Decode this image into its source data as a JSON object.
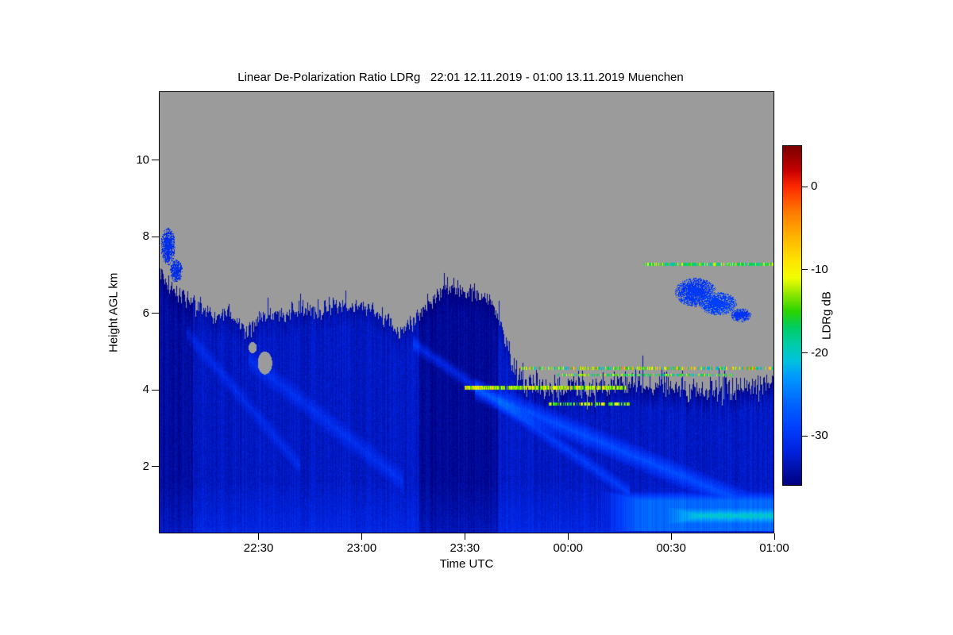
{
  "page": {
    "background": "#ffffff"
  },
  "chart_data": {
    "type": "heatmap",
    "title": "Linear De-Polarization Ratio LDRg   22:01 12.11.2019 - 01:00 13.11.2019 Muenchen",
    "xlabel": "Time UTC",
    "ylabel": "Height AGL km",
    "xlim": [
      22.0167,
      25.0
    ],
    "ylim": [
      0.25,
      11.8
    ],
    "x_ticks": [
      {
        "t": 22.5,
        "label": "22:30"
      },
      {
        "t": 23.0,
        "label": "23:00"
      },
      {
        "t": 23.5,
        "label": "23:30"
      },
      {
        "t": 24.0,
        "label": "00:00"
      },
      {
        "t": 24.5,
        "label": "00:30"
      },
      {
        "t": 25.0,
        "label": "01:00"
      }
    ],
    "y_ticks": [
      {
        "h": 2,
        "label": "2"
      },
      {
        "h": 4,
        "label": "4"
      },
      {
        "h": 6,
        "label": "6"
      },
      {
        "h": 8,
        "label": "8"
      },
      {
        "h": 10,
        "label": "10"
      }
    ],
    "no_signal_color": "#9b9b9b",
    "colorbar": {
      "label": "LDRg dB",
      "vmin": -36,
      "vmax": 5,
      "ticks": [
        {
          "v": 0,
          "label": "0"
        },
        {
          "v": -10,
          "label": "-10"
        },
        {
          "v": -20,
          "label": "-20"
        },
        {
          "v": -30,
          "label": "-30"
        }
      ],
      "stops": [
        [
          5,
          "#7a0000"
        ],
        [
          2,
          "#c80000"
        ],
        [
          0,
          "#ff2a00"
        ],
        [
          -3,
          "#ff7a00"
        ],
        [
          -6,
          "#ffb400"
        ],
        [
          -9,
          "#ffe600"
        ],
        [
          -11,
          "#f2ff00"
        ],
        [
          -13,
          "#8ce600"
        ],
        [
          -15,
          "#2bd400"
        ],
        [
          -17,
          "#00cc66"
        ],
        [
          -19,
          "#00ccaa"
        ],
        [
          -21,
          "#00c3e0"
        ],
        [
          -23,
          "#0099ff"
        ],
        [
          -26,
          "#0066ff"
        ],
        [
          -29,
          "#0040ff"
        ],
        [
          -32,
          "#0022dd"
        ],
        [
          -34,
          "#0011aa"
        ],
        [
          -36,
          "#000080]"
        ]
      ]
    },
    "field": {
      "seed": 11,
      "base_value_db": -33,
      "cloud_top_profile_km": [
        [
          22.02,
          7.1
        ],
        [
          22.05,
          6.8
        ],
        [
          22.12,
          6.4
        ],
        [
          22.21,
          6.1
        ],
        [
          22.29,
          5.9
        ],
        [
          22.37,
          6.0
        ],
        [
          22.44,
          5.5
        ],
        [
          22.52,
          5.9
        ],
        [
          22.6,
          6.0
        ],
        [
          22.71,
          6.1
        ],
        [
          22.79,
          6.0
        ],
        [
          22.87,
          6.2
        ],
        [
          22.98,
          6.2
        ],
        [
          23.06,
          6.1
        ],
        [
          23.13,
          5.8
        ],
        [
          23.19,
          5.5
        ],
        [
          23.25,
          5.8
        ],
        [
          23.32,
          6.3
        ],
        [
          23.4,
          6.6
        ],
        [
          23.48,
          6.6
        ],
        [
          23.55,
          6.5
        ],
        [
          23.63,
          6.3
        ],
        [
          23.7,
          5.4
        ],
        [
          23.74,
          4.4
        ],
        [
          23.8,
          4.1
        ],
        [
          23.95,
          4.0
        ],
        [
          24.1,
          4.0
        ],
        [
          24.25,
          4.15
        ],
        [
          24.4,
          4.1
        ],
        [
          24.55,
          4.0
        ],
        [
          24.7,
          4.0
        ],
        [
          24.85,
          4.1
        ],
        [
          25.0,
          4.2
        ]
      ],
      "top_jitter_km": [
        [
          22.02,
          0.3
        ],
        [
          23.68,
          0.3
        ],
        [
          23.78,
          0.5
        ],
        [
          25.0,
          0.5
        ]
      ],
      "dense_dark_regions": [
        {
          "t0": 23.28,
          "t1": 23.66,
          "delta_db": -2
        },
        {
          "t0": 22.02,
          "t1": 22.18,
          "delta_db": -1.5
        }
      ],
      "fall_streak_bands": [
        {
          "from": [
            23.55,
            4.0
          ],
          "to": [
            24.95,
            0.85
          ],
          "width_km": 0.35,
          "delta_db": 5
        },
        {
          "from": [
            23.25,
            5.2
          ],
          "to": [
            24.3,
            1.3
          ],
          "width_km": 0.25,
          "delta_db": 3.5
        },
        {
          "from": [
            22.45,
            4.8
          ],
          "to": [
            23.2,
            1.6
          ],
          "width_km": 0.35,
          "delta_db": 2.5
        },
        {
          "from": [
            22.15,
            5.5
          ],
          "to": [
            22.7,
            2.0
          ],
          "width_km": 0.3,
          "delta_db": 2
        }
      ],
      "low_level_bright_regions": [
        {
          "t0": 24.15,
          "t1": 25.0,
          "h0": 0.3,
          "h1": 1.35,
          "value_db": -26
        },
        {
          "t0": 24.45,
          "t1": 25.0,
          "h0": 0.45,
          "h1": 0.95,
          "value_db": -20
        }
      ],
      "detached_patches": [
        {
          "t": 24.62,
          "h": 6.55,
          "rt": 0.1,
          "rh": 0.38,
          "value_db": -30
        },
        {
          "t": 24.73,
          "h": 6.25,
          "rt": 0.09,
          "rh": 0.3,
          "value_db": -29
        },
        {
          "t": 24.84,
          "h": 5.95,
          "rt": 0.05,
          "rh": 0.18,
          "value_db": -30
        },
        {
          "t": 22.06,
          "h": 7.75,
          "rt": 0.035,
          "rh": 0.5,
          "value_db": -31
        },
        {
          "t": 22.1,
          "h": 7.1,
          "rt": 0.03,
          "rh": 0.3,
          "value_db": -31
        }
      ],
      "gray_holes": [
        {
          "t": 22.53,
          "h": 4.7,
          "rt": 0.035,
          "rh": 0.3
        },
        {
          "t": 22.47,
          "h": 5.1,
          "rt": 0.02,
          "rh": 0.15
        }
      ],
      "horizontal_streaks": [
        {
          "h": 7.27,
          "t0": 24.37,
          "t1": 25.0,
          "thickness_km": 0.08,
          "v0": -20,
          "v1": -9,
          "density": 0.85
        },
        {
          "h": 4.55,
          "t0": 23.77,
          "t1": 25.0,
          "thickness_km": 0.09,
          "v0": -22,
          "v1": -2,
          "density": 0.7
        },
        {
          "h": 4.38,
          "t0": 23.95,
          "t1": 24.8,
          "thickness_km": 0.07,
          "v0": -20,
          "v1": -8,
          "density": 0.6
        },
        {
          "h": 4.05,
          "t0": 23.5,
          "t1": 24.28,
          "thickness_km": 0.11,
          "v0": -15,
          "v1": -6,
          "density": 0.9
        },
        {
          "h": 3.62,
          "t0": 23.9,
          "t1": 24.3,
          "thickness_km": 0.08,
          "v0": -17,
          "v1": -8,
          "density": 0.6
        }
      ]
    }
  }
}
